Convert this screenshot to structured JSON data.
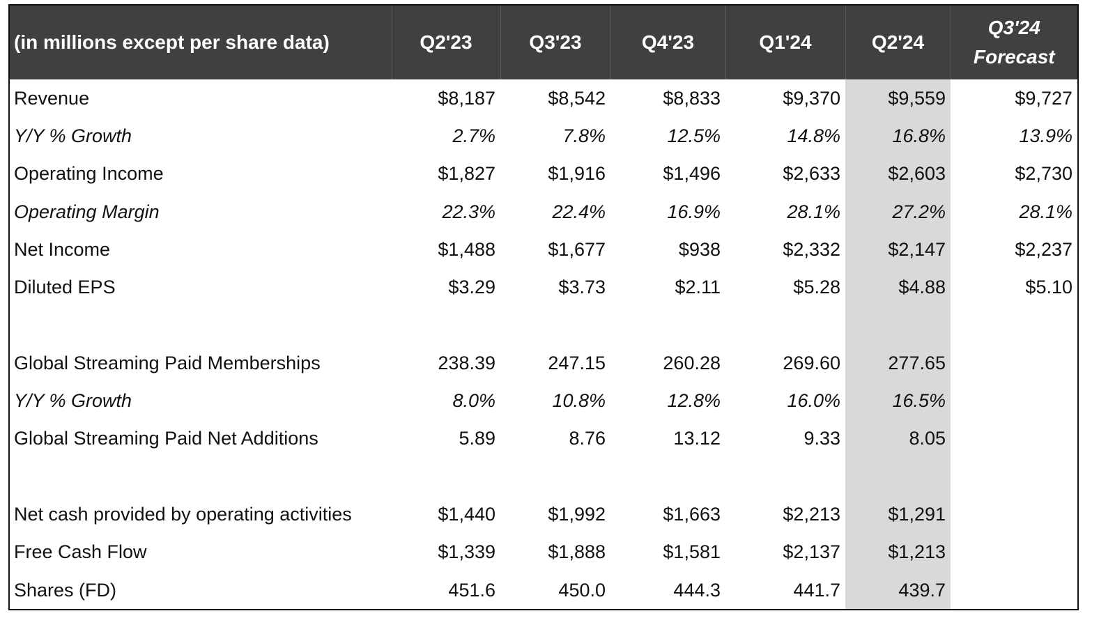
{
  "table": {
    "header": {
      "label": "(in millions except per share data)",
      "columns": [
        "Q2'23",
        "Q3'23",
        "Q4'23",
        "Q1'24",
        "Q2'24"
      ],
      "forecast": {
        "line1": "Q3'24",
        "line2": "Forecast"
      }
    },
    "rows": [
      {
        "label": "Revenue",
        "values": [
          "$8,187",
          "$8,542",
          "$8,833",
          "$9,370",
          "$9,559",
          "$9,727"
        ]
      },
      {
        "label": "Y/Y % Growth",
        "values": [
          "2.7%",
          "7.8%",
          "12.5%",
          "14.8%",
          "16.8%",
          "13.9%"
        ]
      },
      {
        "label": "Operating Income",
        "values": [
          "$1,827",
          "$1,916",
          "$1,496",
          "$2,633",
          "$2,603",
          "$2,730"
        ]
      },
      {
        "label": "Operating Margin",
        "values": [
          "22.3%",
          "22.4%",
          "16.9%",
          "28.1%",
          "27.2%",
          "28.1%"
        ]
      },
      {
        "label": "Net Income",
        "values": [
          "$1,488",
          "$1,677",
          "$938",
          "$2,332",
          "$2,147",
          "$2,237"
        ]
      },
      {
        "label": "Diluted EPS",
        "values": [
          "$3.29",
          "$3.73",
          "$2.11",
          "$5.28",
          "$4.88",
          "$5.10"
        ]
      },
      {
        "label": "Global Streaming Paid Memberships",
        "values": [
          "238.39",
          "247.15",
          "260.28",
          "269.60",
          "277.65",
          ""
        ]
      },
      {
        "label": "Y/Y % Growth",
        "values": [
          "8.0%",
          "10.8%",
          "12.8%",
          "16.0%",
          "16.5%",
          ""
        ]
      },
      {
        "label": "Global Streaming Paid Net Additions",
        "values": [
          "5.89",
          "8.76",
          "13.12",
          "9.33",
          "8.05",
          ""
        ]
      },
      {
        "label": "Net cash provided by operating activities",
        "values": [
          "$1,440",
          "$1,992",
          "$1,663",
          "$2,213",
          "$1,291",
          ""
        ]
      },
      {
        "label": "Free Cash Flow",
        "values": [
          "$1,339",
          "$1,888",
          "$1,581",
          "$2,137",
          "$1,213",
          ""
        ]
      },
      {
        "label": "Shares (FD)",
        "values": [
          "451.6",
          "450.0",
          "444.3",
          "441.7",
          "439.7",
          ""
        ]
      }
    ]
  },
  "colors": {
    "header_bg": "#404040",
    "header_text": "#ffffff",
    "highlight_column": "#d9d9d9"
  }
}
